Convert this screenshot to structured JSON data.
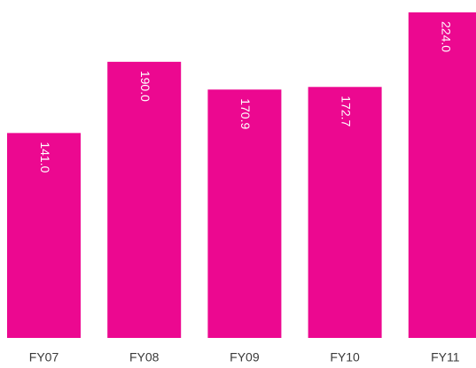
{
  "chart_data": {
    "type": "bar",
    "categories": [
      "FY07",
      "FY08",
      "FY09",
      "FY10",
      "FY11"
    ],
    "values": [
      141.0,
      190.0,
      170.9,
      172.7,
      224.0
    ],
    "value_labels": [
      "141.0",
      "190.0",
      "170.9",
      "172.7",
      "224.0"
    ],
    "color": "#ec0890"
  }
}
